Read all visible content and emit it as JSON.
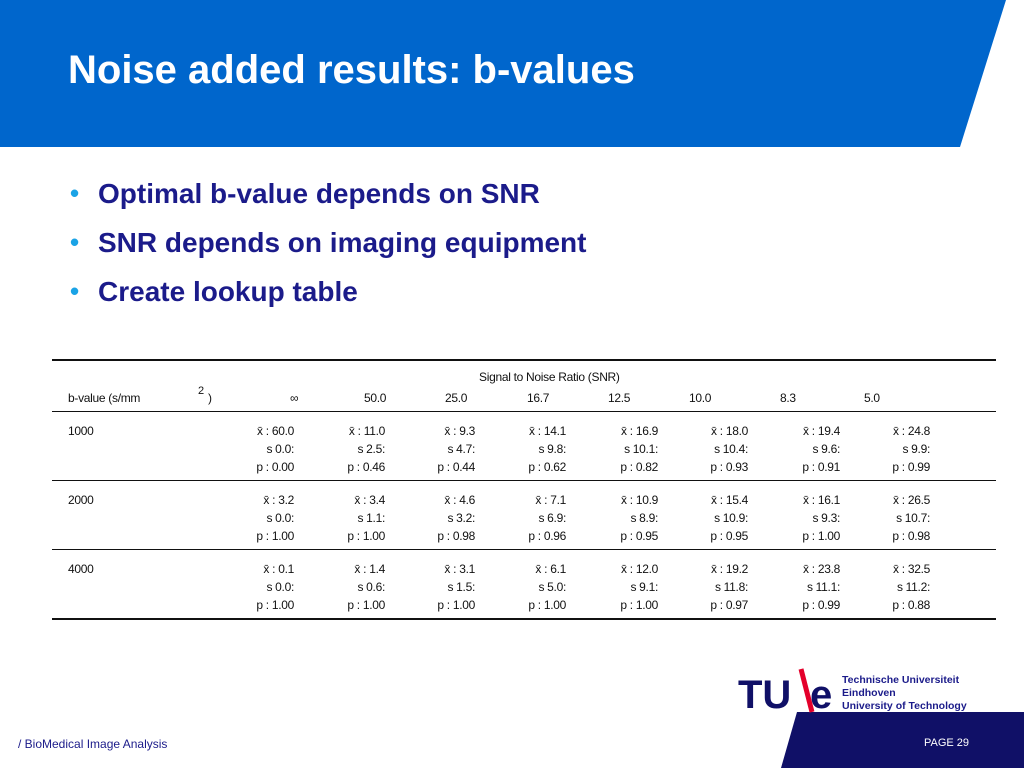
{
  "slide": {
    "title": "Noise added results: b-values",
    "bullets": [
      "Optimal b-value depends on SNR",
      "SNR depends on imaging equipment",
      "Create lookup table"
    ]
  },
  "table": {
    "group_header": "Signal to Noise Ratio (SNR)",
    "row_header": "b-value (s/mm",
    "unit_superscript": "2",
    "unit_close": ")",
    "snr_columns": [
      "∞",
      "50.0",
      "25.0",
      "16.7",
      "12.5",
      "10.0",
      "8.3",
      "5.0"
    ],
    "rows": [
      {
        "bvalue": "1000",
        "xbar": [
          "x̄ : 60.0",
          "x̄ : 11.0",
          "x̄ : 9.3",
          "x̄ : 14.1",
          "x̄ : 16.9",
          "x̄ : 18.0",
          "x̄ : 19.4",
          "x̄ : 24.8"
        ],
        "s": [
          "s 0.0:",
          "s 2.5:",
          "s 4.7:",
          "s 9.8:",
          "s 10.1:",
          "s 10.4:",
          "s 9.6:",
          "s 9.9:"
        ],
        "p": [
          "p : 0.00",
          "p : 0.46",
          "p : 0.44",
          "p : 0.62",
          "p : 0.82",
          "p : 0.93",
          "p : 0.91",
          "p : 0.99"
        ]
      },
      {
        "bvalue": "2000",
        "xbar": [
          "x̄ : 3.2",
          "x̄ : 3.4",
          "x̄ : 4.6",
          "x̄ : 7.1",
          "x̄ : 10.9",
          "x̄ : 15.4",
          "x̄ : 16.1",
          "x̄ : 26.5"
        ],
        "s": [
          "s 0.0:",
          "s 1.1:",
          "s 3.2:",
          "s 6.9:",
          "s 8.9:",
          "s 10.9:",
          "s 9.3:",
          "s 10.7:"
        ],
        "p": [
          "p : 1.00",
          "p : 1.00",
          "p : 0.98",
          "p : 0.96",
          "p : 0.95",
          "p : 0.95",
          "p : 1.00",
          "p : 0.98"
        ]
      },
      {
        "bvalue": "4000",
        "xbar": [
          "x̄ : 0.1",
          "x̄ : 1.4",
          "x̄ : 3.1",
          "x̄ : 6.1",
          "x̄ : 12.0",
          "x̄ : 19.2",
          "x̄ : 23.8",
          "x̄ : 32.5"
        ],
        "s": [
          "s 0.0:",
          "s 0.6:",
          "s 1.5:",
          "s 5.0:",
          "s 9.1:",
          "s 11.8:",
          "s 11.1:",
          "s 11.2:"
        ],
        "p": [
          "p : 1.00",
          "p : 1.00",
          "p : 1.00",
          "p : 1.00",
          "p : 1.00",
          "p : 0.97",
          "p : 0.99",
          "p : 0.88"
        ]
      }
    ]
  },
  "footer": {
    "course": "/ BioMedical Image Analysis",
    "page": "PAGE 29"
  },
  "logo": {
    "mark_left": "TU",
    "mark_right": "e",
    "lines": [
      "Technische Universiteit",
      "Eindhoven",
      "University of Technology"
    ]
  },
  "colors": {
    "brand_blue": "#0066cc",
    "footer_navy": "#101067",
    "text_navy": "#1b1b8a",
    "bullet_cyan": "#1aa3e6",
    "logo_red": "#e4002b"
  }
}
